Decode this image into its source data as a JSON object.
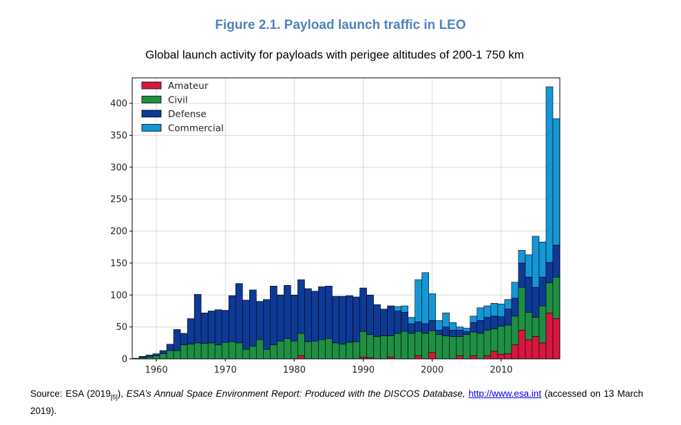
{
  "title": "Figure 2.1. Payload launch traffic in LEO",
  "subtitle": "Global launch activity for payloads with perigee altitudes of 200-1 750 km",
  "source": {
    "prefix": "Source: ESA (2019",
    "ref": "[5]",
    "mid": "), ",
    "report": "ESA’s Annual Space Environment Report: Produced with the DISCOS Database,",
    "link": "http://www.esa.int",
    "suffix": " (accessed on 13 March 2019)."
  },
  "colors": {
    "Amateur": "#d6173f",
    "Civil": "#1f8f44",
    "Defense": "#0e3a96",
    "Commercial": "#1596d6"
  },
  "chart_data": {
    "type": "bar",
    "stacked": true,
    "x": [
      1957,
      1958,
      1959,
      1960,
      1961,
      1962,
      1963,
      1964,
      1965,
      1966,
      1967,
      1968,
      1969,
      1970,
      1971,
      1972,
      1973,
      1974,
      1975,
      1976,
      1977,
      1978,
      1979,
      1980,
      1981,
      1982,
      1983,
      1984,
      1985,
      1986,
      1987,
      1988,
      1989,
      1990,
      1991,
      1992,
      1993,
      1994,
      1995,
      1996,
      1997,
      1998,
      1999,
      2000,
      2001,
      2002,
      2003,
      2004,
      2005,
      2006,
      2007,
      2008,
      2009,
      2010,
      2011,
      2012,
      2013,
      2014,
      2015,
      2016,
      2017,
      2018
    ],
    "xticks": [
      1960,
      1970,
      1980,
      1990,
      2000,
      2010
    ],
    "yticks": [
      0,
      50,
      100,
      150,
      200,
      250,
      300,
      350,
      400
    ],
    "xlim": [
      1956.5,
      2018.5
    ],
    "ylim": [
      0,
      440
    ],
    "grid": true,
    "legend_position": "top-left",
    "series": [
      {
        "name": "Amateur",
        "values": [
          0,
          0,
          0,
          0,
          0,
          0,
          0,
          0,
          0,
          0,
          0,
          0,
          0,
          0,
          0,
          0,
          0,
          0,
          0,
          0,
          0,
          0,
          0,
          0,
          5,
          0,
          0,
          0,
          0,
          0,
          0,
          0,
          0,
          3,
          2,
          0,
          0,
          3,
          0,
          0,
          0,
          5,
          0,
          10,
          0,
          0,
          0,
          5,
          0,
          5,
          0,
          5,
          12,
          7,
          8,
          22,
          45,
          30,
          35,
          25,
          72,
          63
        ]
      },
      {
        "name": "Civil",
        "values": [
          0,
          2,
          3,
          5,
          8,
          13,
          13,
          22,
          23,
          25,
          24,
          25,
          22,
          26,
          27,
          25,
          15,
          20,
          30,
          15,
          22,
          28,
          32,
          28,
          35,
          27,
          28,
          30,
          32,
          25,
          23,
          26,
          27,
          40,
          36,
          35,
          36,
          33,
          40,
          43,
          40,
          38,
          40,
          34,
          38,
          36,
          35,
          30,
          38,
          37,
          40,
          40,
          35,
          44,
          45,
          45,
          67,
          43,
          30,
          58,
          47,
          65
        ]
      },
      {
        "name": "Defense",
        "values": [
          1,
          2,
          3,
          3,
          5,
          10,
          33,
          18,
          40,
          76,
          48,
          50,
          55,
          50,
          72,
          93,
          77,
          88,
          60,
          78,
          92,
          72,
          83,
          72,
          84,
          83,
          78,
          83,
          82,
          73,
          75,
          73,
          70,
          68,
          62,
          50,
          42,
          47,
          35,
          30,
          15,
          15,
          15,
          16,
          7,
          14,
          10,
          10,
          5,
          15,
          20,
          20,
          20,
          15,
          25,
          28,
          38,
          55,
          47,
          45,
          32,
          50
        ]
      },
      {
        "name": "Commercial",
        "values": [
          0,
          0,
          0,
          0,
          0,
          0,
          0,
          0,
          0,
          0,
          0,
          0,
          0,
          0,
          0,
          0,
          0,
          0,
          0,
          0,
          0,
          0,
          0,
          0,
          0,
          0,
          0,
          0,
          0,
          0,
          0,
          0,
          0,
          0,
          0,
          0,
          0,
          0,
          7,
          10,
          10,
          66,
          80,
          42,
          15,
          22,
          12,
          5,
          5,
          10,
          20,
          18,
          20,
          20,
          15,
          25,
          20,
          35,
          80,
          55,
          275,
          198
        ]
      }
    ]
  }
}
